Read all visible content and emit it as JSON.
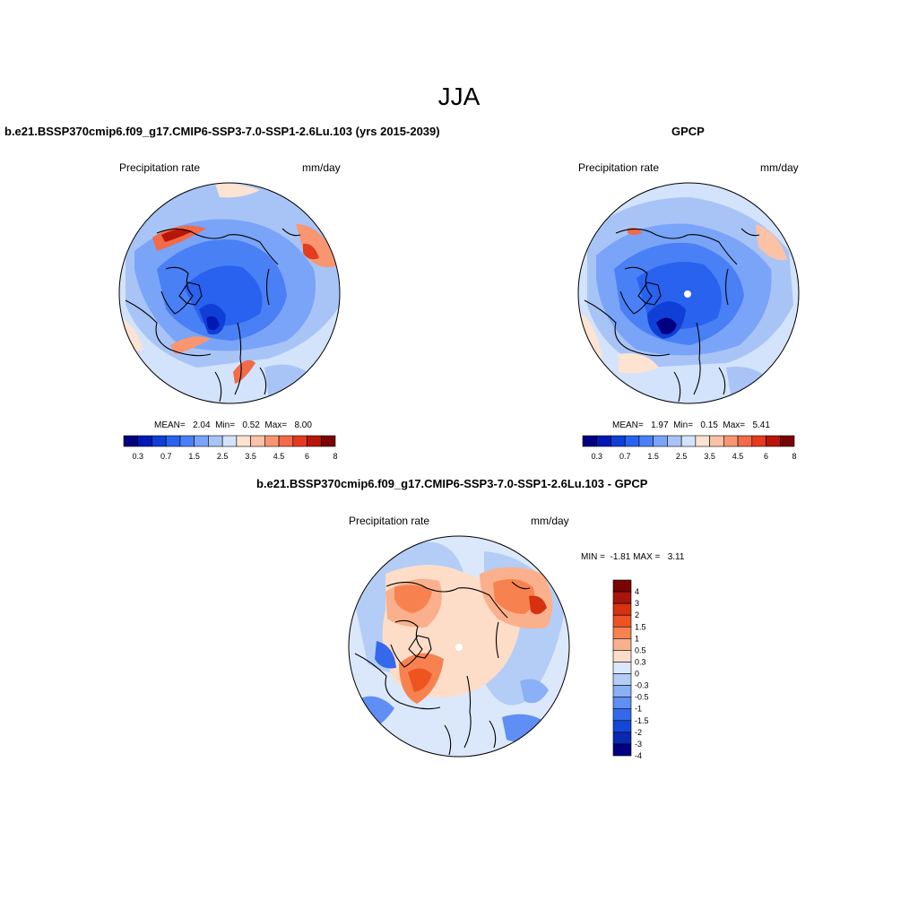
{
  "title": "JJA",
  "panels": [
    {
      "id": "model",
      "title": "b.e21.BSSP370cmip6.f09_g17.CMIP6-SSP3-7.0-SSP1-2.6Lu.103 (yrs 2015-2039)",
      "left_label": "Precipitation rate",
      "right_label": "mm/day",
      "stats": "MEAN=   2.04  Min=   0.52  Max=   8.00",
      "colorbar_ticks": [
        "0.3",
        "0.7",
        "1.5",
        "2.5",
        "3.5",
        "4.5",
        "6",
        "8"
      ]
    },
    {
      "id": "obs",
      "title": "GPCP",
      "left_label": "Precipitation rate",
      "right_label": "mm/day",
      "stats": "MEAN=   1.97  Min=   0.15  Max=   5.41",
      "colorbar_ticks": [
        "0.3",
        "0.7",
        "1.5",
        "2.5",
        "3.5",
        "4.5",
        "6",
        "8"
      ]
    },
    {
      "id": "diff",
      "title": "b.e21.BSSP370cmip6.f09_g17.CMIP6-SSP3-7.0-SSP1-2.6Lu.103 - GPCP",
      "left_label": "Precipitation rate",
      "right_label": "mm/day",
      "stats": "MIN =  -1.81 MAX =   3.11",
      "colorbar_ticks": [
        "4",
        "3",
        "2",
        "1.5",
        "1",
        "0.5",
        "0.3",
        "0",
        "-0.3",
        "-0.5",
        "-1",
        "-1.5",
        "-2",
        "-3",
        "-4"
      ]
    }
  ],
  "colors": {
    "sequential": [
      "#000080",
      "#0018b4",
      "#0f3fd6",
      "#2962ef",
      "#4a80f5",
      "#7aa4f7",
      "#a8c4f7",
      "#d3e3fb",
      "#fde3d2",
      "#fcc2a5",
      "#f89672",
      "#f26a48",
      "#e43a1e",
      "#b8160a",
      "#7a0403"
    ],
    "diverging": [
      "#7a0403",
      "#a8150a",
      "#d6320f",
      "#ee5420",
      "#f78250",
      "#fab08c",
      "#fdddc8",
      "#dbe8fb",
      "#b3cdf6",
      "#8ab0f5",
      "#5f8ff4",
      "#3569ec",
      "#1547d6",
      "#0829b0",
      "#000080"
    ]
  }
}
